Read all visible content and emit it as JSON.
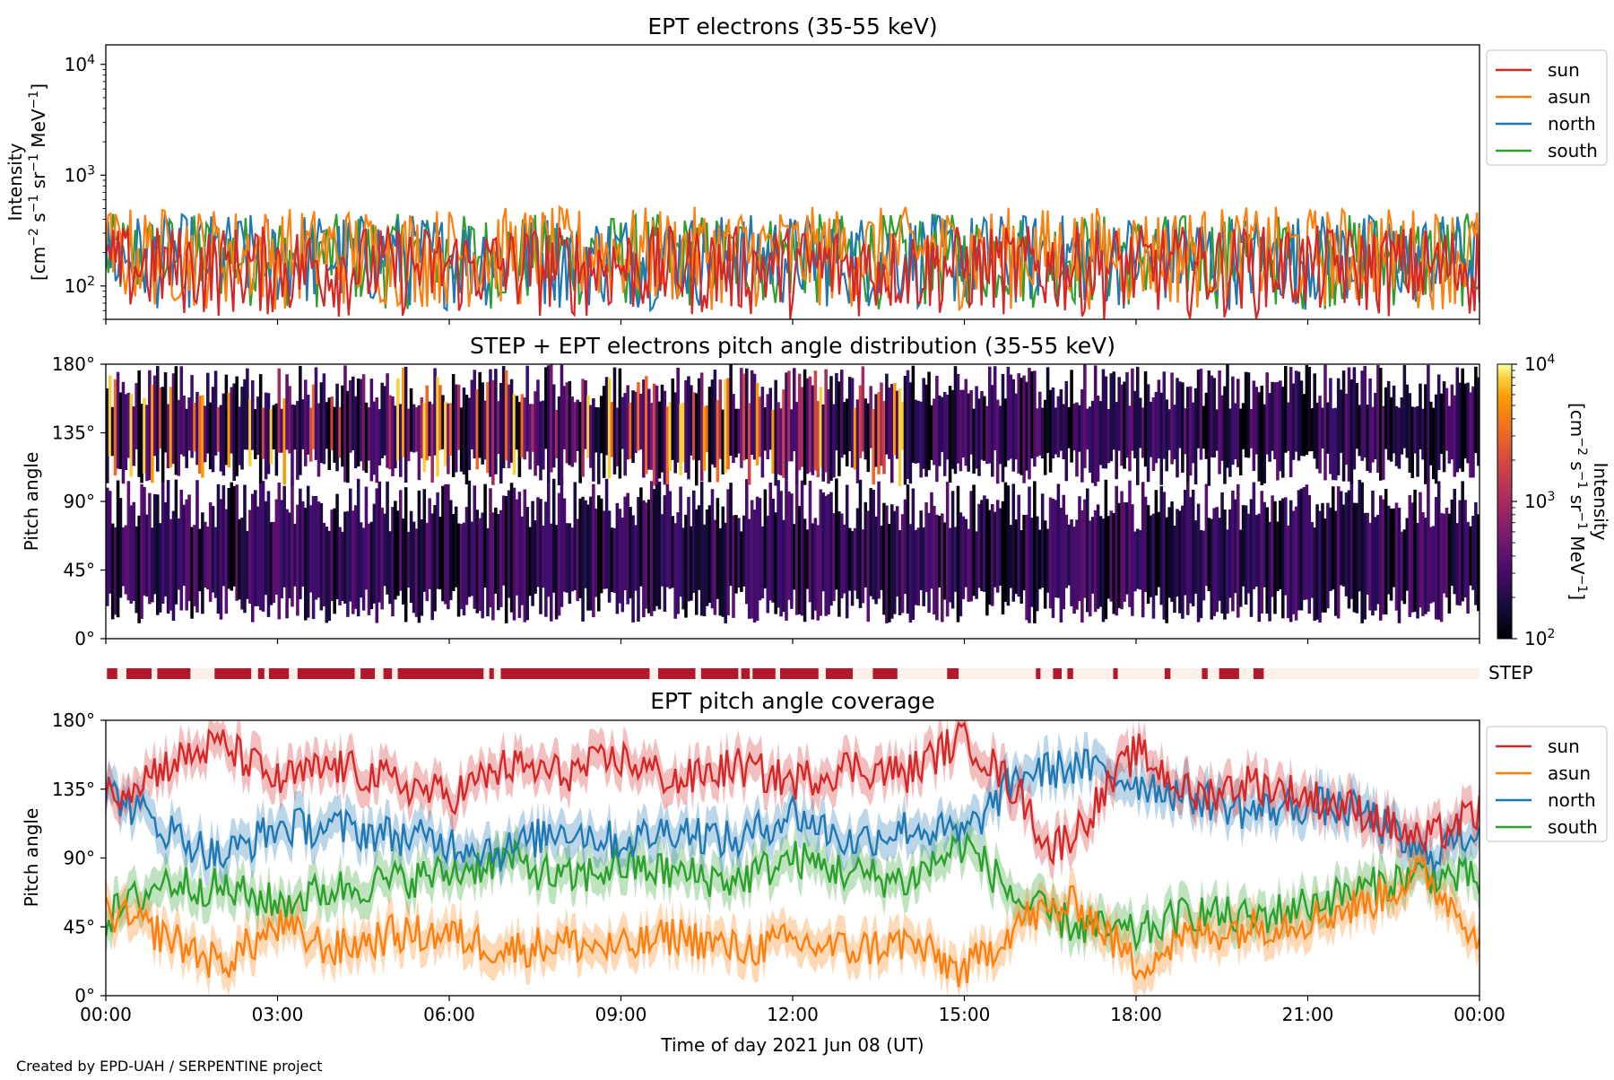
{
  "credit": "Created by EPD-UAH / SERPENTINE project",
  "colors": {
    "sun": "#d62728",
    "asun": "#ff7f0e",
    "north": "#1f77b4",
    "south": "#2ca02c",
    "step_on": "#b2182b",
    "step_off": "#fdf1ea"
  },
  "legend": [
    "sun",
    "asun",
    "north",
    "south"
  ],
  "x_axis": {
    "label": "Time of day 2021 Jun 08 (UT)",
    "range_hours": [
      0,
      24
    ],
    "ticks": [
      {
        "h": 0,
        "label": "00:00"
      },
      {
        "h": 3,
        "label": "03:00"
      },
      {
        "h": 6,
        "label": "06:00"
      },
      {
        "h": 9,
        "label": "09:00"
      },
      {
        "h": 12,
        "label": "12:00"
      },
      {
        "h": 15,
        "label": "15:00"
      },
      {
        "h": 18,
        "label": "18:00"
      },
      {
        "h": 21,
        "label": "21:00"
      },
      {
        "h": 24,
        "label": "00:00"
      }
    ]
  },
  "chart_data": [
    {
      "type": "line",
      "title": "EPT electrons (35-55 keV)",
      "ylabel_line1": "Intensity",
      "ylabel_line2": "[cm",
      "ylabel_unit_parts": [
        [
          "[cm",
          ""
        ],
        [
          "−2",
          "sup"
        ],
        [
          " s",
          ""
        ],
        [
          "−1",
          "sup"
        ],
        [
          " sr",
          ""
        ],
        [
          "−1",
          "sup"
        ],
        [
          " MeV",
          ""
        ],
        [
          "−1",
          "sup"
        ],
        [
          "]",
          ""
        ]
      ],
      "yscale": "log",
      "ylim": [
        50,
        15000
      ],
      "yticks": [
        {
          "v": 100,
          "base": "10",
          "exp": "2"
        },
        {
          "v": 1000,
          "base": "10",
          "exp": "3"
        },
        {
          "v": 10000,
          "base": "10",
          "exp": "4"
        }
      ],
      "series_order": [
        "south",
        "north",
        "asun",
        "sun"
      ],
      "series_levels": {
        "sun": [
          50,
          350
        ],
        "asun": [
          60,
          520
        ],
        "north": [
          60,
          450
        ],
        "south": [
          60,
          450
        ]
      },
      "samples": 560
    },
    {
      "type": "heatmap",
      "title": "STEP + EPT electrons pitch angle distribution (35-55 keV)",
      "ylabel": "Pitch angle",
      "ylim": [
        0,
        180
      ],
      "yticks": [
        {
          "v": 0,
          "label": "0°"
        },
        {
          "v": 45,
          "label": "45°"
        },
        {
          "v": 90,
          "label": "90°"
        },
        {
          "v": 135,
          "label": "135°"
        },
        {
          "v": 180,
          "label": "180°"
        }
      ],
      "colorbar": {
        "scale": "log",
        "range": [
          100,
          10000
        ],
        "colormap": "inferno",
        "ticks": [
          {
            "v": 100,
            "base": "10",
            "exp": "2"
          },
          {
            "v": 1000,
            "base": "10",
            "exp": "3"
          },
          {
            "v": 10000,
            "base": "10",
            "exp": "4"
          }
        ],
        "label_line1": "Intensity",
        "label_unit_parts": [
          [
            "[cm",
            ""
          ],
          [
            "−2",
            "sup"
          ],
          [
            " s",
            ""
          ],
          [
            "−1",
            "sup"
          ],
          [
            " sr",
            ""
          ],
          [
            "−1",
            "sup"
          ],
          [
            " MeV",
            ""
          ],
          [
            "−1",
            "sup"
          ],
          [
            "]",
            ""
          ]
        ]
      }
    },
    {
      "type": "bar",
      "label": "STEP",
      "on_intervals_hours": [
        [
          0.02,
          0.2
        ],
        [
          0.36,
          0.8
        ],
        [
          0.9,
          1.48
        ],
        [
          1.9,
          2.54
        ],
        [
          2.66,
          2.77
        ],
        [
          2.85,
          3.2
        ],
        [
          3.35,
          4.35
        ],
        [
          4.45,
          4.7
        ],
        [
          4.85,
          5.0
        ],
        [
          5.1,
          6.6
        ],
        [
          6.7,
          6.78
        ],
        [
          6.9,
          9.5
        ],
        [
          9.65,
          10.3
        ],
        [
          10.4,
          11.05
        ],
        [
          11.1,
          11.25
        ],
        [
          11.3,
          11.7
        ],
        [
          11.78,
          12.45
        ],
        [
          12.58,
          13.05
        ],
        [
          13.4,
          13.83
        ],
        [
          14.7,
          14.9
        ],
        [
          16.25,
          16.33
        ],
        [
          16.55,
          16.7
        ],
        [
          16.8,
          16.9
        ],
        [
          17.6,
          17.68
        ],
        [
          18.5,
          18.6
        ],
        [
          19.15,
          19.25
        ],
        [
          19.45,
          19.8
        ],
        [
          20.05,
          20.23
        ]
      ]
    },
    {
      "type": "line",
      "title": "EPT pitch angle coverage",
      "ylabel": "Pitch angle",
      "ylim": [
        0,
        180
      ],
      "yticks": [
        {
          "v": 0,
          "label": "0°"
        },
        {
          "v": 45,
          "label": "45°"
        },
        {
          "v": 90,
          "label": "90°"
        },
        {
          "v": 135,
          "label": "135°"
        },
        {
          "v": 180,
          "label": "180°"
        }
      ],
      "band_halfwidth_deg": 12,
      "series": [
        {
          "name": "sun",
          "knots_hours": [
            0,
            1,
            2,
            3,
            4,
            5,
            6,
            7,
            8,
            9,
            10,
            11,
            12,
            13,
            14,
            15,
            16,
            16.5,
            17,
            18,
            19,
            20,
            21,
            22,
            23,
            24
          ],
          "knots_deg": [
            130,
            150,
            165,
            140,
            150,
            140,
            130,
            150,
            145,
            155,
            140,
            150,
            140,
            150,
            145,
            170,
            130,
            95,
            110,
            160,
            130,
            140,
            130,
            120,
            100,
            120
          ]
        },
        {
          "name": "asun",
          "knots_hours": [
            0,
            1,
            2,
            3,
            4,
            5,
            6,
            7,
            8,
            9,
            10,
            11,
            12,
            13,
            14,
            15,
            16,
            17,
            18,
            19,
            20,
            21,
            22,
            23,
            24
          ],
          "knots_deg": [
            55,
            40,
            20,
            45,
            30,
            40,
            40,
            30,
            35,
            30,
            40,
            30,
            35,
            30,
            35,
            15,
            50,
            60,
            20,
            40,
            45,
            50,
            60,
            80,
            40
          ]
        },
        {
          "name": "north",
          "knots_hours": [
            0,
            1,
            2,
            3,
            4,
            5,
            6,
            7,
            8,
            9,
            10,
            11,
            12,
            13,
            14,
            15,
            16,
            17,
            18,
            19,
            20,
            21,
            22,
            23,
            24
          ],
          "knots_deg": [
            135,
            110,
            90,
            110,
            110,
            105,
            100,
            95,
            110,
            100,
            110,
            100,
            120,
            100,
            110,
            105,
            145,
            150,
            140,
            130,
            120,
            125,
            120,
            90,
            110
          ]
        },
        {
          "name": "south",
          "knots_hours": [
            0,
            1,
            2,
            3,
            4,
            5,
            6,
            7,
            8,
            9,
            10,
            11,
            12,
            13,
            14,
            15,
            16,
            17,
            18,
            19,
            20,
            21,
            22,
            23,
            24
          ],
          "knots_deg": [
            50,
            75,
            70,
            60,
            70,
            75,
            80,
            90,
            75,
            85,
            80,
            75,
            90,
            80,
            75,
            100,
            60,
            45,
            40,
            55,
            50,
            60,
            70,
            80,
            75
          ]
        }
      ]
    }
  ]
}
